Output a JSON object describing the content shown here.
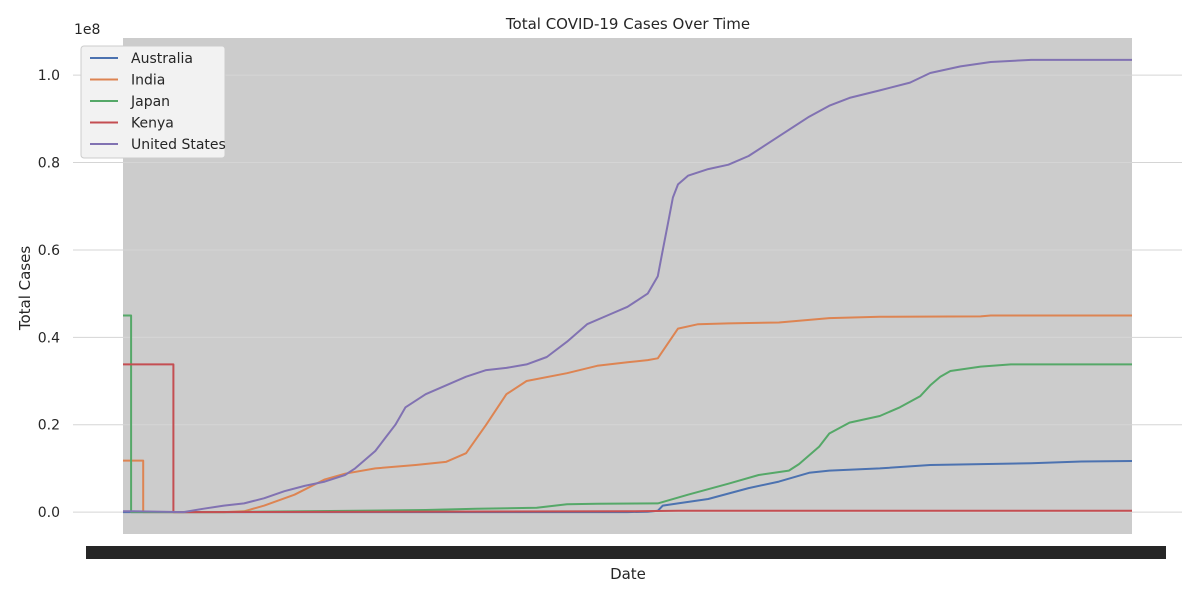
{
  "chart_data": {
    "type": "line",
    "title": "Total COVID-19 Cases Over Time",
    "xlabel": "Date",
    "ylabel": "Total Cases",
    "y_offset_text": "1e8",
    "ylim": [
      -0.05,
      1.085
    ],
    "y_ticks": [
      0.0,
      0.2,
      0.4,
      0.6,
      0.8,
      1.0
    ],
    "y_tick_labels": [
      "0.0",
      "0.2",
      "0.4",
      "0.6",
      "0.8",
      "1.0"
    ],
    "x_tick_labels_note": "dense overlapping date tick labels",
    "grid": true,
    "legend_position": "top-left",
    "colors": {
      "background_plot": "#cccccc",
      "grid": "#d5d5d5"
    },
    "series": [
      {
        "name": "Australia",
        "color": "#4c72b0",
        "points": [
          [
            0,
            0.0
          ],
          [
            0.01,
            0.0
          ],
          [
            0.02,
            0.0
          ],
          [
            0.1,
            0.0
          ],
          [
            0.3,
            0.0
          ],
          [
            0.5,
            0.0
          ],
          [
            0.52,
            0.001
          ],
          [
            0.53,
            0.003
          ],
          [
            0.535,
            0.015
          ],
          [
            0.55,
            0.02
          ],
          [
            0.58,
            0.03
          ],
          [
            0.62,
            0.055
          ],
          [
            0.65,
            0.07
          ],
          [
            0.68,
            0.09
          ],
          [
            0.7,
            0.095
          ],
          [
            0.75,
            0.1
          ],
          [
            0.8,
            0.108
          ],
          [
            0.9,
            0.112
          ],
          [
            0.95,
            0.116
          ],
          [
            1.0,
            0.117
          ]
        ]
      },
      {
        "name": "India",
        "color": "#dd8452",
        "points": [
          [
            0,
            0.118
          ],
          [
            0.02,
            0.118
          ],
          [
            0.02,
            0.0
          ],
          [
            0.05,
            0.0
          ],
          [
            0.1,
            0.0
          ],
          [
            0.12,
            0.002
          ],
          [
            0.14,
            0.015
          ],
          [
            0.17,
            0.04
          ],
          [
            0.2,
            0.075
          ],
          [
            0.22,
            0.088
          ],
          [
            0.25,
            0.1
          ],
          [
            0.29,
            0.108
          ],
          [
            0.32,
            0.115
          ],
          [
            0.34,
            0.135
          ],
          [
            0.36,
            0.2
          ],
          [
            0.38,
            0.27
          ],
          [
            0.4,
            0.3
          ],
          [
            0.44,
            0.318
          ],
          [
            0.47,
            0.335
          ],
          [
            0.5,
            0.343
          ],
          [
            0.52,
            0.348
          ],
          [
            0.53,
            0.352
          ],
          [
            0.55,
            0.42
          ],
          [
            0.57,
            0.43
          ],
          [
            0.6,
            0.432
          ],
          [
            0.65,
            0.434
          ],
          [
            0.7,
            0.444
          ],
          [
            0.75,
            0.447
          ],
          [
            0.85,
            0.448
          ],
          [
            0.86,
            0.45
          ],
          [
            1.0,
            0.45
          ]
        ]
      },
      {
        "name": "Japan",
        "color": "#55a868",
        "points": [
          [
            0,
            0.45
          ],
          [
            0.008,
            0.45
          ],
          [
            0.008,
            0.0
          ],
          [
            0.1,
            0.0
          ],
          [
            0.3,
            0.005
          ],
          [
            0.35,
            0.008
          ],
          [
            0.41,
            0.01
          ],
          [
            0.44,
            0.018
          ],
          [
            0.47,
            0.019
          ],
          [
            0.53,
            0.02
          ],
          [
            0.56,
            0.04
          ],
          [
            0.6,
            0.065
          ],
          [
            0.63,
            0.085
          ],
          [
            0.66,
            0.095
          ],
          [
            0.67,
            0.11
          ],
          [
            0.69,
            0.15
          ],
          [
            0.7,
            0.18
          ],
          [
            0.72,
            0.205
          ],
          [
            0.75,
            0.22
          ],
          [
            0.77,
            0.24
          ],
          [
            0.79,
            0.265
          ],
          [
            0.8,
            0.29
          ],
          [
            0.81,
            0.31
          ],
          [
            0.82,
            0.323
          ],
          [
            0.85,
            0.333
          ],
          [
            0.88,
            0.338
          ],
          [
            1.0,
            0.338
          ]
        ]
      },
      {
        "name": "Kenya",
        "color": "#c44e52",
        "points": [
          [
            0,
            0.338
          ],
          [
            0.05,
            0.338
          ],
          [
            0.05,
            0.0
          ],
          [
            0.5,
            0.002
          ],
          [
            0.55,
            0.003
          ],
          [
            0.7,
            0.003
          ],
          [
            1.0,
            0.003
          ]
        ]
      },
      {
        "name": "United States",
        "color": "#8172b2",
        "points": [
          [
            0,
            0.002
          ],
          [
            0.01,
            0.002
          ],
          [
            0.06,
            0.0
          ],
          [
            0.08,
            0.008
          ],
          [
            0.1,
            0.015
          ],
          [
            0.12,
            0.02
          ],
          [
            0.14,
            0.032
          ],
          [
            0.16,
            0.048
          ],
          [
            0.18,
            0.06
          ],
          [
            0.2,
            0.07
          ],
          [
            0.22,
            0.085
          ],
          [
            0.23,
            0.1
          ],
          [
            0.25,
            0.14
          ],
          [
            0.26,
            0.17
          ],
          [
            0.27,
            0.2
          ],
          [
            0.28,
            0.24
          ],
          [
            0.3,
            0.27
          ],
          [
            0.32,
            0.29
          ],
          [
            0.34,
            0.31
          ],
          [
            0.36,
            0.325
          ],
          [
            0.38,
            0.33
          ],
          [
            0.4,
            0.338
          ],
          [
            0.42,
            0.355
          ],
          [
            0.44,
            0.39
          ],
          [
            0.46,
            0.43
          ],
          [
            0.48,
            0.45
          ],
          [
            0.5,
            0.47
          ],
          [
            0.52,
            0.5
          ],
          [
            0.53,
            0.54
          ],
          [
            0.535,
            0.6
          ],
          [
            0.54,
            0.66
          ],
          [
            0.545,
            0.72
          ],
          [
            0.55,
            0.75
          ],
          [
            0.56,
            0.77
          ],
          [
            0.58,
            0.785
          ],
          [
            0.6,
            0.795
          ],
          [
            0.62,
            0.815
          ],
          [
            0.65,
            0.86
          ],
          [
            0.68,
            0.905
          ],
          [
            0.7,
            0.93
          ],
          [
            0.72,
            0.948
          ],
          [
            0.75,
            0.965
          ],
          [
            0.78,
            0.983
          ],
          [
            0.8,
            1.005
          ],
          [
            0.83,
            1.02
          ],
          [
            0.86,
            1.03
          ],
          [
            0.9,
            1.035
          ],
          [
            1.0,
            1.035
          ]
        ]
      }
    ]
  }
}
